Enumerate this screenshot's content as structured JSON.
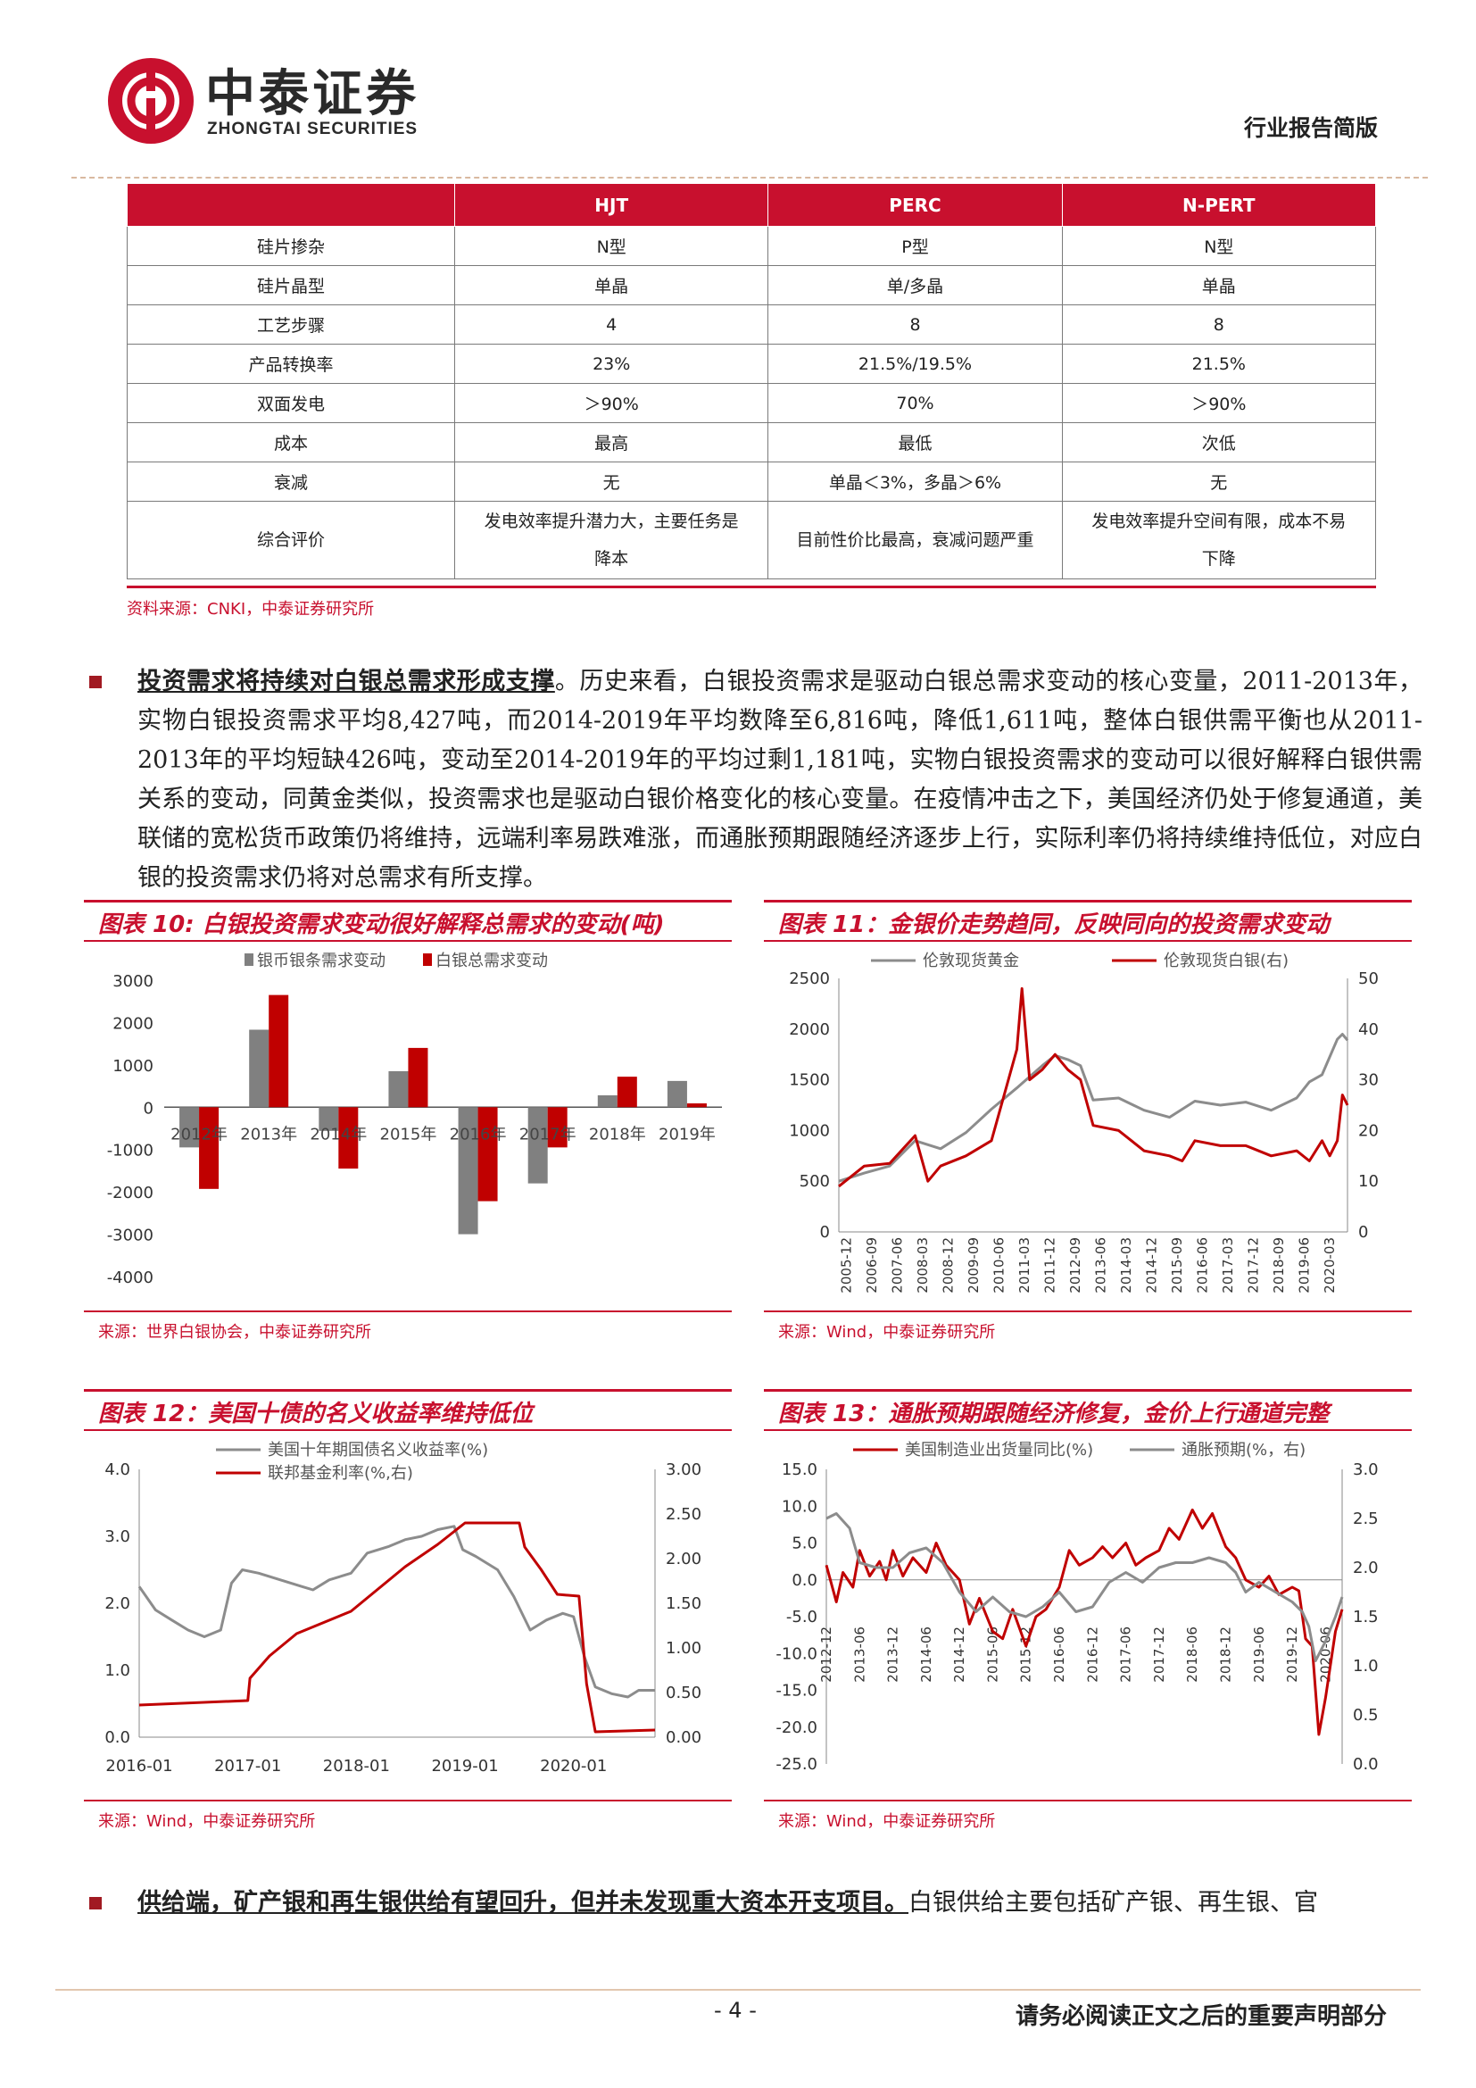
{
  "header": {
    "company_cn": "中泰证券",
    "company_en": "ZHONGTAI SECURITIES",
    "report_type": "行业报告简版"
  },
  "comparison_table": {
    "columns": [
      "",
      "HJT",
      "PERC",
      "N-PERT"
    ],
    "rows": [
      {
        "label": "硅片掺杂",
        "hjt": "N型",
        "perc": "P型",
        "npert": "N型"
      },
      {
        "label": "硅片晶型",
        "hjt": "单晶",
        "perc": "单/多晶",
        "npert": "单晶"
      },
      {
        "label": "工艺步骤",
        "hjt": "4",
        "perc": "8",
        "npert": "8"
      },
      {
        "label": "产品转换率",
        "hjt": "23%",
        "perc": "21.5%/19.5%",
        "npert": "21.5%"
      },
      {
        "label": "双面发电",
        "hjt": "＞90%",
        "perc": "70%",
        "npert": "＞90%"
      },
      {
        "label": "成本",
        "hjt": "最高",
        "perc": "最低",
        "npert": "次低"
      },
      {
        "label": "衰减",
        "hjt": "无",
        "perc": "单晶＜3%，多晶＞6%",
        "npert": "无"
      }
    ],
    "summary_row": {
      "label": "综合评价",
      "hjt_line1": "发电效率提升潜力大，主要任务是",
      "hjt_line2": "降本",
      "perc": "目前性价比最高，衰减问题严重",
      "npert_line1": "发电效率提升空间有限，成本不易",
      "npert_line2": "下降"
    },
    "source": "资料来源：CNKI，中泰证券研究所"
  },
  "paragraph1": {
    "lead": "投资需求将持续对白银总需求形成支撑",
    "body": "。历史来看，白银投资需求是驱动白银总需求变动的核心变量，2011-2013年，实物白银投资需求平均8,427吨，而2014-2019年平均数降至6,816吨，降低1,611吨，整体白银供需平衡也从2011-2013年的平均短缺426吨，变动至2014-2019年的平均过剩1,181吨，实物白银投资需求的变动可以很好解释白银供需关系的变动，同黄金类似，投资需求也是驱动白银价格变化的核心变量。在疫情冲击之下，美国经济仍处于修复通道，美联储的宽松货币政策仍将维持，远端利率易跌难涨，而通胀预期跟随经济逐步上行，实际利率仍将持续维持低位，对应白银的投资需求仍将对总需求有所支撑。"
  },
  "paragraph2": {
    "lead": "供给端，矿产银和再生银供给有望回升，但并未发现重大资本开支项目。",
    "body": "白银供给主要包括矿产银、再生银、官"
  },
  "figures": {
    "fig10": {
      "title": "图表 10: 白银投资需求变动很好解释总需求的变动(吨)",
      "source": "来源：世界白银协会，中泰证券研究所"
    },
    "fig11": {
      "title": "图表 11：金银价走势趋同，反映同向的投资需求变动",
      "source": "来源：Wind，中泰证券研究所"
    },
    "fig12": {
      "title": "图表 12：美国十债的名义收益率维持低位",
      "source": "来源：Wind，中泰证券研究所"
    },
    "fig13": {
      "title": "图表 13：通胀预期跟随经济修复，金价上行通道完整",
      "source": "来源：Wind，中泰证券研究所"
    }
  },
  "chart_data": [
    {
      "id": "fig10",
      "type": "bar",
      "categories": [
        "2012年",
        "2013年",
        "2014年",
        "2015年",
        "2016年",
        "2017年",
        "2018年",
        "2019年"
      ],
      "series": [
        {
          "name": "银币银条需求变动",
          "color": "#808080",
          "values": [
            -950,
            1830,
            -560,
            850,
            -3000,
            -1800,
            280,
            620
          ]
        },
        {
          "name": "白银总需求变动",
          "color": "#c00000",
          "values": [
            -1930,
            2650,
            -1450,
            1400,
            -2220,
            -950,
            720,
            90
          ]
        }
      ],
      "ylim": [
        -4000,
        3000
      ],
      "yticks": [
        3000,
        2000,
        1000,
        0,
        -1000,
        -2000,
        -3000,
        -4000
      ],
      "legend": "top"
    },
    {
      "id": "fig11",
      "type": "line",
      "x_ticks": [
        "2005-12",
        "2006-09",
        "2007-06",
        "2008-03",
        "2008-12",
        "2009-09",
        "2010-06",
        "2011-03",
        "2011-12",
        "2012-09",
        "2013-06",
        "2014-03",
        "2014-12",
        "2015-09",
        "2016-06",
        "2017-03",
        "2017-12",
        "2018-09",
        "2019-06",
        "2020-03"
      ],
      "series": [
        {
          "name": "伦敦现货黄金",
          "axis": "left",
          "color": "#8c8c8c",
          "points": [
            [
              0,
              500
            ],
            [
              1,
              580
            ],
            [
              2,
              650
            ],
            [
              3,
              900
            ],
            [
              4,
              820
            ],
            [
              5,
              980
            ],
            [
              6,
              1210
            ],
            [
              7,
              1420
            ],
            [
              8,
              1640
            ],
            [
              8.5,
              1740
            ],
            [
              9,
              1700
            ],
            [
              9.5,
              1640
            ],
            [
              10,
              1300
            ],
            [
              11,
              1320
            ],
            [
              12,
              1200
            ],
            [
              13,
              1130
            ],
            [
              14,
              1290
            ],
            [
              15,
              1250
            ],
            [
              16,
              1280
            ],
            [
              17,
              1200
            ],
            [
              18,
              1320
            ],
            [
              18.5,
              1480
            ],
            [
              19,
              1550
            ],
            [
              19.6,
              1900
            ],
            [
              19.8,
              1950
            ],
            [
              20,
              1890
            ]
          ]
        },
        {
          "name": "伦敦现货白银(右)",
          "axis": "right",
          "color": "#c00000",
          "points": [
            [
              0,
              9
            ],
            [
              1,
              13
            ],
            [
              2,
              13.5
            ],
            [
              3,
              19
            ],
            [
              3.5,
              10
            ],
            [
              4,
              13
            ],
            [
              5,
              15
            ],
            [
              6,
              18
            ],
            [
              7,
              36
            ],
            [
              7.2,
              48
            ],
            [
              7.5,
              30
            ],
            [
              8,
              32
            ],
            [
              8.5,
              35
            ],
            [
              9,
              32
            ],
            [
              9.5,
              30
            ],
            [
              10,
              21
            ],
            [
              11,
              20
            ],
            [
              12,
              16
            ],
            [
              13,
              15
            ],
            [
              13.5,
              14
            ],
            [
              14,
              18
            ],
            [
              15,
              17
            ],
            [
              16,
              17
            ],
            [
              17,
              15
            ],
            [
              18,
              16
            ],
            [
              18.5,
              14
            ],
            [
              19,
              18
            ],
            [
              19.3,
              15
            ],
            [
              19.6,
              18
            ],
            [
              19.8,
              27
            ],
            [
              20,
              25
            ]
          ]
        }
      ],
      "ylim_left": [
        0,
        2500
      ],
      "ylim_right": [
        0,
        50
      ],
      "yticks_left": [
        2500,
        2000,
        1500,
        1000,
        500,
        0
      ],
      "yticks_right": [
        50,
        40,
        30,
        20,
        10,
        0
      ],
      "legend": "top"
    },
    {
      "id": "fig12",
      "type": "line",
      "x_ticks": [
        "2016-01",
        "2017-01",
        "2018-01",
        "2019-01",
        "2020-01"
      ],
      "series": [
        {
          "name": "美国十年期国债名义收益率(%)",
          "axis": "left",
          "color": "#8c8c8c",
          "points": [
            [
              0,
              2.25
            ],
            [
              0.15,
              1.9
            ],
            [
              0.3,
              1.75
            ],
            [
              0.45,
              1.6
            ],
            [
              0.6,
              1.5
            ],
            [
              0.75,
              1.6
            ],
            [
              0.85,
              2.3
            ],
            [
              0.95,
              2.5
            ],
            [
              1.1,
              2.45
            ],
            [
              1.3,
              2.35
            ],
            [
              1.5,
              2.25
            ],
            [
              1.6,
              2.2
            ],
            [
              1.75,
              2.35
            ],
            [
              1.95,
              2.45
            ],
            [
              2.1,
              2.75
            ],
            [
              2.3,
              2.85
            ],
            [
              2.45,
              2.95
            ],
            [
              2.6,
              3.0
            ],
            [
              2.75,
              3.1
            ],
            [
              2.9,
              3.15
            ],
            [
              2.98,
              2.8
            ],
            [
              3.1,
              2.7
            ],
            [
              3.3,
              2.5
            ],
            [
              3.45,
              2.1
            ],
            [
              3.6,
              1.6
            ],
            [
              3.75,
              1.75
            ],
            [
              3.9,
              1.85
            ],
            [
              4.0,
              1.8
            ],
            [
              4.1,
              1.2
            ],
            [
              4.2,
              0.75
            ],
            [
              4.35,
              0.65
            ],
            [
              4.5,
              0.6
            ],
            [
              4.6,
              0.7
            ],
            [
              4.75,
              0.7
            ]
          ]
        },
        {
          "name": "联邦基金利率(%,右)",
          "axis": "right",
          "color": "#c00000",
          "points": [
            [
              0,
              0.36
            ],
            [
              1.0,
              0.41
            ],
            [
              1.02,
              0.66
            ],
            [
              1.2,
              0.91
            ],
            [
              1.45,
              1.16
            ],
            [
              1.95,
              1.41
            ],
            [
              2.2,
              1.66
            ],
            [
              2.45,
              1.91
            ],
            [
              2.75,
              2.16
            ],
            [
              3.0,
              2.4
            ],
            [
              3.5,
              2.4
            ],
            [
              3.55,
              2.13
            ],
            [
              3.7,
              1.88
            ],
            [
              3.85,
              1.6
            ],
            [
              4.05,
              1.58
            ],
            [
              4.12,
              0.6
            ],
            [
              4.2,
              0.06
            ],
            [
              4.75,
              0.08
            ]
          ]
        }
      ],
      "ylim_left": [
        0,
        4.0
      ],
      "ylim_right": [
        0,
        3.0
      ],
      "yticks_left": [
        4.0,
        3.0,
        2.0,
        1.0,
        0.0
      ],
      "yticks_right": [
        3.0,
        2.5,
        2.0,
        1.5,
        1.0,
        0.5,
        0.0
      ],
      "legend": "top"
    },
    {
      "id": "fig13",
      "type": "line",
      "x_ticks": [
        "2012-12",
        "2013-06",
        "2013-12",
        "2014-06",
        "2014-12",
        "2015-06",
        "2015-12",
        "2016-06",
        "2016-12",
        "2017-06",
        "2017-12",
        "2018-06",
        "2018-12",
        "2019-06",
        "2019-12",
        "2020-06"
      ],
      "series": [
        {
          "name": "美国制造业出货量同比(%)",
          "axis": "left",
          "color": "#c00000",
          "points": [
            [
              0,
              2
            ],
            [
              0.3,
              -3
            ],
            [
              0.5,
              1
            ],
            [
              0.8,
              -1
            ],
            [
              1,
              4
            ],
            [
              1.3,
              0.5
            ],
            [
              1.6,
              2.5
            ],
            [
              1.8,
              0
            ],
            [
              2,
              4
            ],
            [
              2.3,
              0.5
            ],
            [
              2.6,
              3
            ],
            [
              3,
              1
            ],
            [
              3.3,
              5
            ],
            [
              3.6,
              2
            ],
            [
              4,
              0
            ],
            [
              4.3,
              -6
            ],
            [
              4.6,
              -2.5
            ],
            [
              5,
              -7
            ],
            [
              5.3,
              -8
            ],
            [
              5.6,
              -4
            ],
            [
              6,
              -9
            ],
            [
              6.3,
              -5
            ],
            [
              6.6,
              -4
            ],
            [
              7,
              -1
            ],
            [
              7.3,
              4
            ],
            [
              7.6,
              2
            ],
            [
              8,
              3
            ],
            [
              8.3,
              4.5
            ],
            [
              8.6,
              3
            ],
            [
              9,
              5
            ],
            [
              9.3,
              2
            ],
            [
              9.6,
              3
            ],
            [
              10,
              4
            ],
            [
              10.3,
              7
            ],
            [
              10.6,
              5.5
            ],
            [
              11,
              9.5
            ],
            [
              11.3,
              7
            ],
            [
              11.6,
              9
            ],
            [
              12,
              4.5
            ],
            [
              12.3,
              3
            ],
            [
              12.6,
              0
            ],
            [
              13,
              -1
            ],
            [
              13.3,
              0.5
            ],
            [
              13.6,
              -2
            ],
            [
              14,
              -1
            ],
            [
              14.2,
              -1.5
            ],
            [
              14.4,
              -8
            ],
            [
              14.6,
              -9
            ],
            [
              14.8,
              -21
            ],
            [
              15,
              -16
            ],
            [
              15.3,
              -7
            ],
            [
              15.5,
              -4
            ]
          ]
        },
        {
          "name": "通胀预期(%，右)",
          "axis": "right",
          "color": "#8c8c8c",
          "points": [
            [
              0,
              2.5
            ],
            [
              0.3,
              2.55
            ],
            [
              0.7,
              2.4
            ],
            [
              1,
              2.05
            ],
            [
              1.5,
              2.0
            ],
            [
              2,
              2.0
            ],
            [
              2.5,
              2.15
            ],
            [
              3,
              2.2
            ],
            [
              3.5,
              2.05
            ],
            [
              4,
              1.75
            ],
            [
              4.5,
              1.55
            ],
            [
              5,
              1.7
            ],
            [
              5.5,
              1.55
            ],
            [
              6,
              1.5
            ],
            [
              6.5,
              1.6
            ],
            [
              7,
              1.75
            ],
            [
              7.5,
              1.55
            ],
            [
              8,
              1.6
            ],
            [
              8.5,
              1.85
            ],
            [
              9,
              1.95
            ],
            [
              9.5,
              1.85
            ],
            [
              10,
              2.0
            ],
            [
              10.5,
              2.05
            ],
            [
              11,
              2.05
            ],
            [
              11.5,
              2.1
            ],
            [
              12,
              2.05
            ],
            [
              12.3,
              1.95
            ],
            [
              12.6,
              1.75
            ],
            [
              13,
              1.85
            ],
            [
              13.5,
              1.75
            ],
            [
              14,
              1.65
            ],
            [
              14.3,
              1.55
            ],
            [
              14.5,
              1.4
            ],
            [
              14.7,
              1.05
            ],
            [
              15,
              1.25
            ],
            [
              15.3,
              1.5
            ],
            [
              15.5,
              1.7
            ]
          ]
        }
      ],
      "ylim_left": [
        -25,
        15
      ],
      "ylim_right": [
        0,
        3.0
      ],
      "yticks_left": [
        15.0,
        10.0,
        5.0,
        0.0,
        -5.0,
        -10.0,
        -15.0,
        -20.0,
        -25.0
      ],
      "yticks_right": [
        3.0,
        2.5,
        2.0,
        1.5,
        1.0,
        0.5,
        0.0
      ],
      "legend": "top"
    }
  ],
  "footer": {
    "page_number": "- 4 -",
    "disclaimer": "请务必阅读正文之后的重要声明部分"
  }
}
